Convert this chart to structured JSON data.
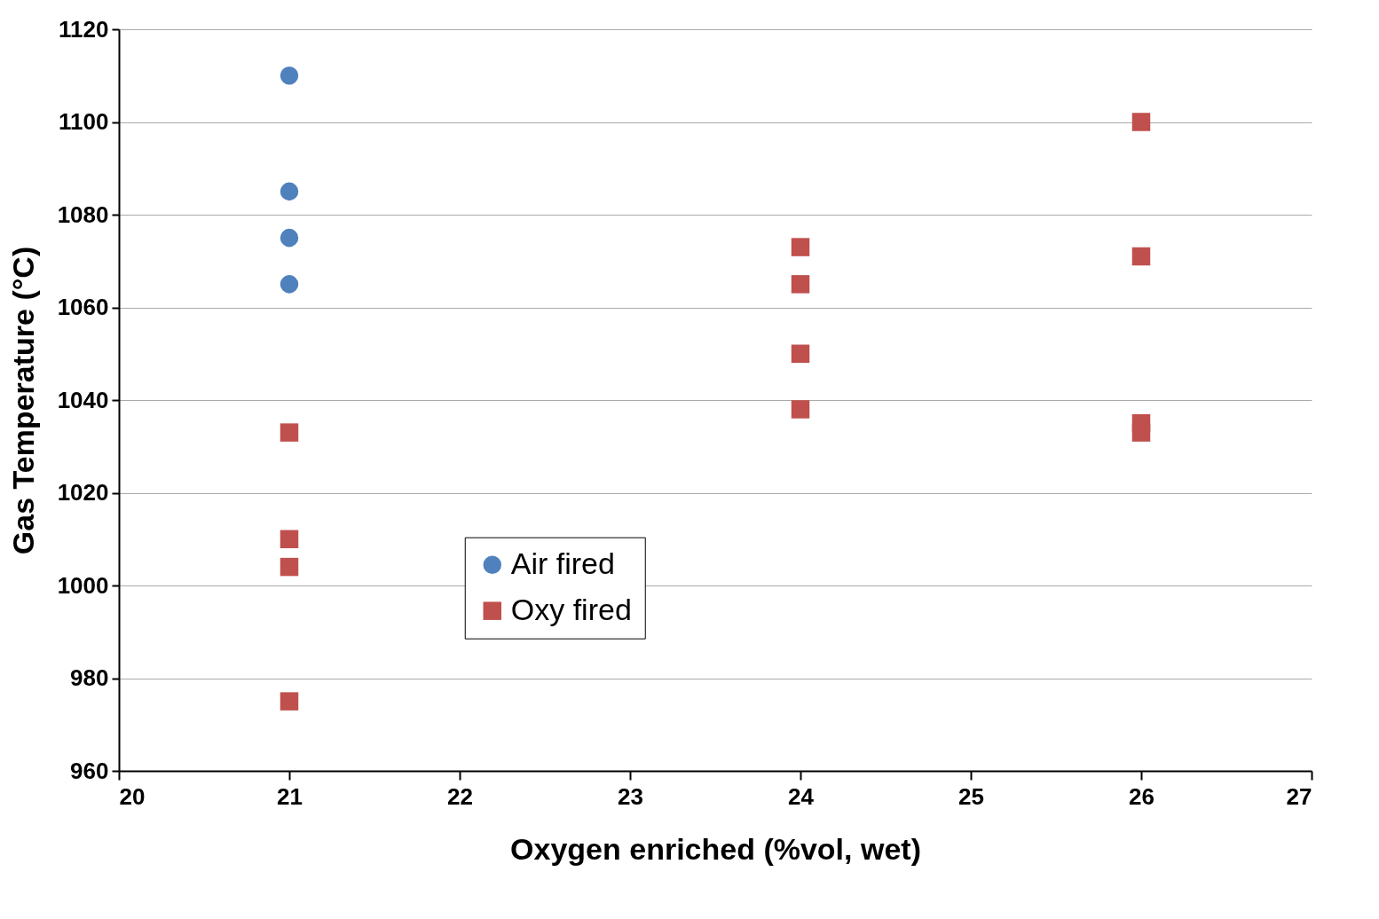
{
  "chart_data": {
    "type": "scatter",
    "xlabel": "Oxygen enriched (%vol, wet)",
    "ylabel": "Gas Temperature (°C)",
    "xlim": [
      20,
      27
    ],
    "xticks": [
      20,
      21,
      22,
      23,
      24,
      25,
      26,
      27
    ],
    "ylim": [
      960,
      1120
    ],
    "yticks": [
      960,
      980,
      1000,
      1020,
      1040,
      1060,
      1080,
      1100,
      1120
    ],
    "grid": "y",
    "legend": "bottom left",
    "series": [
      {
        "name": "Air fired",
        "color": "#4f81bd",
        "marker": "circle",
        "x": [
          21,
          21,
          21,
          21
        ],
        "values": [
          1110,
          1085,
          1075,
          1065
        ]
      },
      {
        "name": "Oxy fired",
        "color": "#c0504d",
        "marker": "square",
        "x": [
          21,
          21,
          21,
          21,
          24,
          24,
          24,
          24,
          26,
          26,
          26,
          26
        ],
        "values": [
          1033,
          1010,
          1004,
          975,
          1073,
          1065,
          1050,
          1038,
          1100,
          1071,
          1035,
          1033
        ]
      }
    ]
  }
}
